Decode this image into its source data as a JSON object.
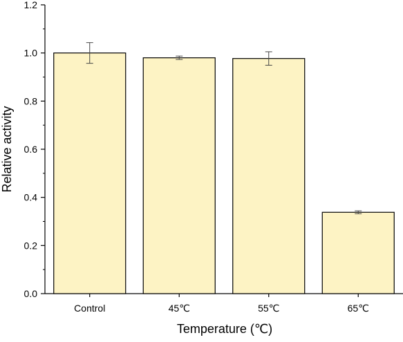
{
  "chart_data": {
    "type": "bar",
    "title": "",
    "xlabel": "Temperature (℃)",
    "ylabel": "Relative activity",
    "categories": [
      "Control",
      "45℃",
      "55℃",
      "65℃"
    ],
    "values": [
      1.0,
      0.98,
      0.977,
      0.338
    ],
    "errors": [
      0.043,
      0.007,
      0.028,
      0.006
    ],
    "ylim": [
      0,
      1.2
    ],
    "yticks": [
      "0.0",
      "0.2",
      "0.4",
      "0.6",
      "0.8",
      "1.0",
      "1.2"
    ],
    "grid": false,
    "legend": "none",
    "bar_color": "#fdf3c4",
    "edge_color": "#000000"
  }
}
